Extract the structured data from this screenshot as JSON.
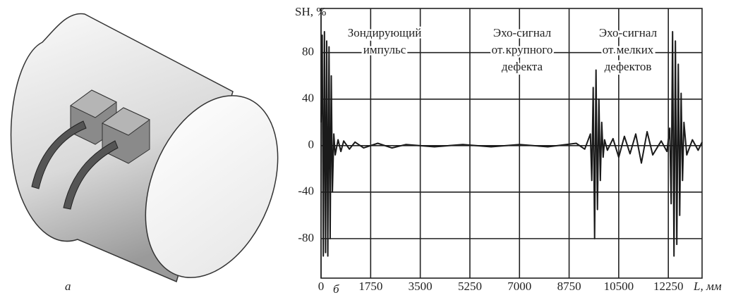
{
  "panels": {
    "a_label": "а",
    "b_label": "б"
  },
  "chart_data": {
    "type": "line",
    "y_label": "SH, %",
    "x_label": "L, мм",
    "annotations": [
      {
        "lines": [
          "Зондирующий",
          "импульс"
        ]
      },
      {
        "lines": [
          "Эхо-сигнал",
          "от крупного",
          "дефекта"
        ]
      },
      {
        "lines": [
          "Эхо-сигнал",
          "от мелких",
          "дефектов"
        ]
      }
    ],
    "x": [
      0,
      40,
      80,
      120,
      160,
      200,
      240,
      280,
      320,
      360,
      400,
      450,
      500,
      600,
      700,
      800,
      1000,
      1200,
      1500,
      2000,
      2500,
      3000,
      4000,
      5000,
      6000,
      7000,
      8000,
      9000,
      9300,
      9500,
      9550,
      9600,
      9650,
      9700,
      9750,
      9800,
      9850,
      9900,
      9950,
      10000,
      10100,
      10300,
      10500,
      10700,
      10900,
      11100,
      11300,
      11500,
      11700,
      12000,
      12200,
      12300,
      12350,
      12400,
      12450,
      12500,
      12550,
      12600,
      12650,
      12700,
      12750,
      12800,
      12900,
      13100,
      13300,
      13440
    ],
    "values": [
      20,
      95,
      -95,
      98,
      -92,
      90,
      -95,
      85,
      -80,
      60,
      -40,
      10,
      -8,
      5,
      -5,
      4,
      -3,
      3,
      -2,
      2,
      -2,
      1,
      -1,
      1,
      -1,
      1,
      -1,
      2,
      -3,
      10,
      -30,
      50,
      -80,
      65,
      -55,
      40,
      -30,
      20,
      -10,
      5,
      -4,
      6,
      -10,
      8,
      -7,
      10,
      -15,
      12,
      -8,
      4,
      -5,
      15,
      -50,
      98,
      -95,
      90,
      -85,
      70,
      -60,
      45,
      -30,
      20,
      -8,
      5,
      -4,
      3
    ],
    "color": "#1a1a1a",
    "xlim": [
      0,
      13440
    ],
    "ylim": [
      -114,
      118
    ],
    "xticks": [
      0,
      1750,
      3500,
      5250,
      7000,
      8750,
      10500,
      12250
    ],
    "yticks": [
      -80,
      -40,
      0,
      40,
      80
    ],
    "grid": true
  }
}
